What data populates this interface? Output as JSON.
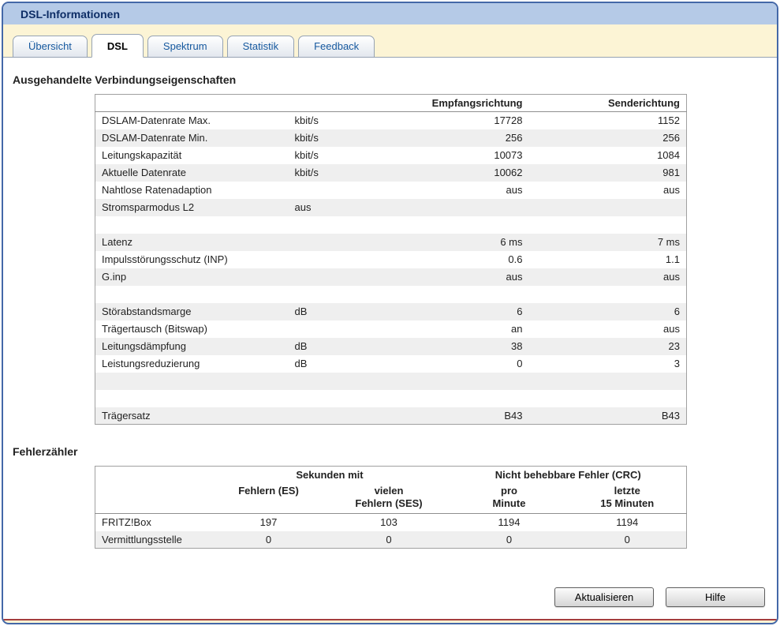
{
  "window": {
    "title": "DSL-Informationen"
  },
  "tabs": [
    {
      "label": "Übersicht",
      "active": false
    },
    {
      "label": "DSL",
      "active": true
    },
    {
      "label": "Spektrum",
      "active": false
    },
    {
      "label": "Statistik",
      "active": false
    },
    {
      "label": "Feedback",
      "active": false
    }
  ],
  "connection": {
    "title": "Ausgehandelte Verbindungseigenschaften",
    "col_receive": "Empfangsrichtung",
    "col_send": "Senderichtung",
    "rows": [
      [
        "DSLAM-Datenrate Max.",
        "kbit/s",
        "17728",
        "1152"
      ],
      [
        "DSLAM-Datenrate Min.",
        "kbit/s",
        "256",
        "256"
      ],
      [
        "Leitungskapazität",
        "kbit/s",
        "10073",
        "1084"
      ],
      [
        "Aktuelle Datenrate",
        "kbit/s",
        "10062",
        "981"
      ],
      [
        "Nahtlose Ratenadaption",
        "",
        "aus",
        "aus"
      ],
      [
        "Stromsparmodus L2",
        "aus",
        "",
        ""
      ],
      [
        "",
        "",
        "",
        ""
      ],
      [
        "Latenz",
        "",
        "6 ms",
        "7 ms"
      ],
      [
        "Impulsstörungsschutz (INP)",
        "",
        "0.6",
        "1.1"
      ],
      [
        "G.inp",
        "",
        "aus",
        "aus"
      ],
      [
        "",
        "",
        "",
        ""
      ],
      [
        "Störabstandsmarge",
        "dB",
        "6",
        "6"
      ],
      [
        "Trägertausch (Bitswap)",
        "",
        "an",
        "aus"
      ],
      [
        "Leitungsdämpfung",
        "dB",
        "38",
        "23"
      ],
      [
        "Leistungsreduzierung",
        "dB",
        "0",
        "3"
      ],
      [
        "",
        "",
        "",
        ""
      ],
      [
        "",
        "",
        "",
        ""
      ],
      [
        "Trägersatz",
        "",
        "B43",
        "B43"
      ]
    ]
  },
  "errors": {
    "title": "Fehlerzähler",
    "group_seconds": "Sekunden mit",
    "group_crc": "Nicht behebbare Fehler (CRC)",
    "col_es": "Fehlern (ES)",
    "col_ses": "vielen\nFehlern (SES)",
    "col_per_minute": "pro\nMinute",
    "col_last_15": "letzte\n15 Minuten",
    "rows": [
      [
        "FRITZ!Box",
        "197",
        "103",
        "1194",
        "1194"
      ],
      [
        "Vermittlungsstelle",
        "0",
        "0",
        "0",
        "0"
      ]
    ]
  },
  "buttons": {
    "refresh": "Aktualisieren",
    "help": "Hilfe"
  },
  "colors": {
    "frame_border": "#4468a8",
    "title_bar": "#b5cae7",
    "page_background": "#fcf4d5",
    "tab_text": "#15589e",
    "row_stripe": "#efefef",
    "bottom_line": "#a43d3d"
  }
}
